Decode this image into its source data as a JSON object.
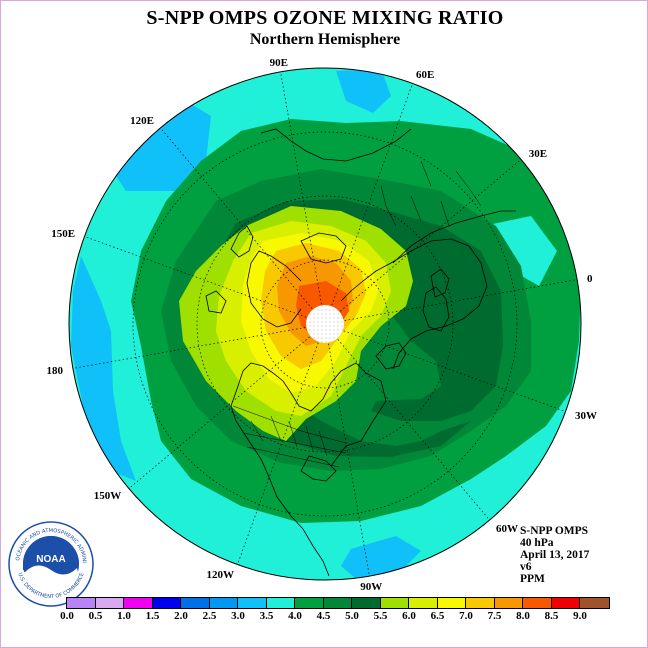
{
  "header": {
    "title": "S-NPP OMPS OZONE MIXING RATIO",
    "subtitle": "Northern Hemisphere"
  },
  "map": {
    "projection": "north polar stereographic",
    "longitude_labels": [
      "0",
      "30E",
      "60E",
      "90E",
      "120E",
      "150E",
      "180",
      "150W",
      "120W",
      "90W",
      "60W",
      "30W"
    ],
    "missing_data_region": "white dotted disk at pole",
    "features": [
      "coastlines",
      "political borders",
      "US state borders",
      "dotted graticule"
    ]
  },
  "info": {
    "instrument": "S-NPP OMPS",
    "level": "40 hPa",
    "date": "April 13, 2017",
    "version": "v6",
    "units": "PPM"
  },
  "logo": {
    "text": "NOAA",
    "ring_text": "NATIONAL OCEANIC AND ATMOSPHERIC ADMINISTRATION",
    "lower_ring_text": "U.S. DEPARTMENT OF COMMERCE"
  },
  "colorbar": {
    "labels": [
      "0.0",
      "0.5",
      "1.0",
      "1.5",
      "2.0",
      "2.5",
      "3.0",
      "3.5",
      "4.0",
      "4.5",
      "5.0",
      "5.5",
      "6.0",
      "6.5",
      "7.0",
      "7.5",
      "8.0",
      "8.5",
      "9.0"
    ],
    "colors": [
      "#b982f5",
      "#d8a8f0",
      "#f000f0",
      "#0000f0",
      "#0070e8",
      "#0098f0",
      "#10c0f8",
      "#20f0d8",
      "#00a040",
      "#008838",
      "#006b2e",
      "#a0e000",
      "#d8f000",
      "#f8f800",
      "#f8c800",
      "#f89800",
      "#f85800",
      "#f00000",
      "#a0522d"
    ]
  },
  "field": {
    "min_ppm": 3.0,
    "max_ppm": 8.5,
    "levels_ppm": [
      3.0,
      3.5,
      4.0,
      4.5,
      5.0,
      5.5,
      6.0,
      6.5,
      7.0,
      7.5,
      8.0
    ]
  }
}
